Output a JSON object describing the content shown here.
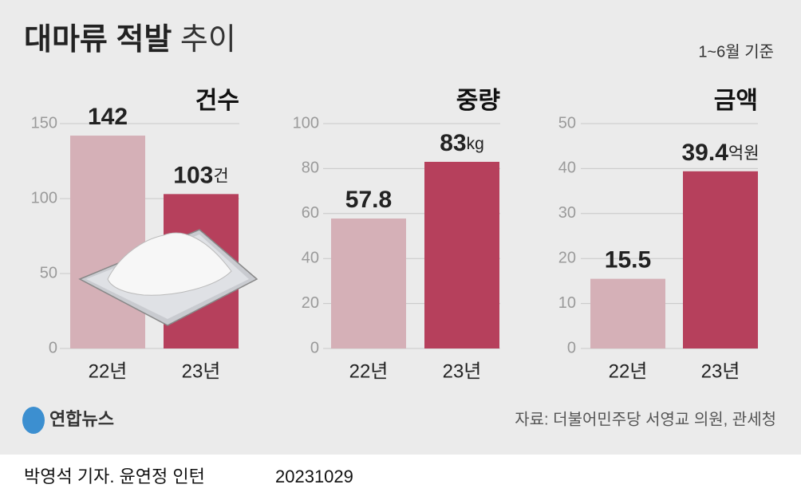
{
  "title": "대마류 적발",
  "title_light": "추이",
  "note": "1~6월 기준",
  "logo": "연합뉴스",
  "source": "자료: 더불어민주당 서영교 의원, 관세청",
  "credit": "박영석 기자. 윤연정 인턴",
  "date": "20231029",
  "chart_data": [
    {
      "type": "bar",
      "title": "건수",
      "categories": [
        "22년",
        "23년"
      ],
      "values": [
        142,
        103
      ],
      "unit": "건",
      "colors": [
        "#d5b0b7",
        "#b6405c"
      ],
      "ylim": [
        0,
        150
      ],
      "yticks": [
        0,
        50,
        100,
        150
      ],
      "grid": true
    },
    {
      "type": "bar",
      "title": "중량",
      "categories": [
        "22년",
        "23년"
      ],
      "values": [
        57.8,
        83
      ],
      "unit": "kg",
      "colors": [
        "#d5b0b7",
        "#b6405c"
      ],
      "ylim": [
        0,
        100
      ],
      "yticks": [
        0,
        20,
        40,
        60,
        80,
        100
      ],
      "grid": true
    },
    {
      "type": "bar",
      "title": "금액",
      "categories": [
        "22년",
        "23년"
      ],
      "values": [
        15.5,
        39.4
      ],
      "unit": "억원",
      "colors": [
        "#d5b0b7",
        "#b6405c"
      ],
      "ylim": [
        0,
        50
      ],
      "yticks": [
        0,
        10,
        20,
        30,
        40,
        50
      ],
      "grid": true
    }
  ]
}
